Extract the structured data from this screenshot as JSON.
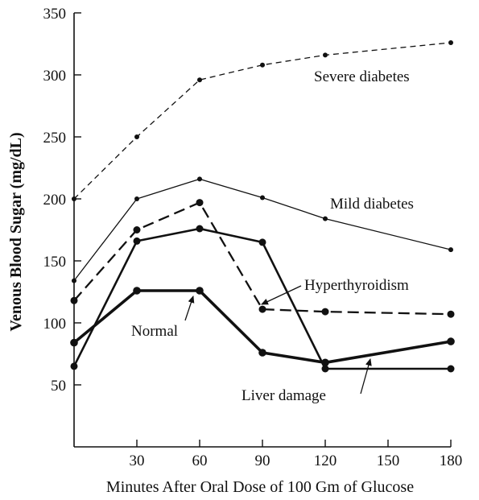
{
  "chart_data": {
    "type": "line",
    "xlabel": "Minutes After Oral Dose of 100 Gm of Glucose",
    "ylabel": "Venous Blood Sugar (mg/dL)",
    "xlim": [
      0,
      180
    ],
    "ylim": [
      0,
      350
    ],
    "x_ticks": [
      "30",
      "60",
      "90",
      "120",
      "150",
      "180"
    ],
    "y_ticks": [
      "50",
      "100",
      "150",
      "200",
      "250",
      "300",
      "350"
    ],
    "grid": false,
    "series": [
      {
        "name": "Severe diabetes",
        "x": [
          0,
          30,
          60,
          90,
          120,
          180
        ],
        "values": [
          200,
          250,
          296,
          308,
          316,
          326
        ],
        "line": "dashed-thin",
        "marker": "small"
      },
      {
        "name": "Mild diabetes",
        "x": [
          0,
          30,
          60,
          90,
          120,
          180
        ],
        "values": [
          134,
          200,
          216,
          201,
          184,
          159
        ],
        "line": "solid-thin",
        "marker": "small"
      },
      {
        "name": "Hyperthyroidism",
        "x": [
          0,
          30,
          60,
          90,
          120,
          180
        ],
        "values": [
          118,
          175,
          197,
          111,
          109,
          107
        ],
        "line": "dashed-thick",
        "marker": "large"
      },
      {
        "name": "Liver damage",
        "x": [
          0,
          30,
          60,
          90,
          120,
          180
        ],
        "values": [
          65,
          166,
          176,
          165,
          63,
          63
        ],
        "line": "solid-thick",
        "marker": "large"
      },
      {
        "name": "Normal",
        "x": [
          0,
          30,
          60,
          90,
          120,
          180
        ],
        "values": [
          84,
          126,
          126,
          76,
          68,
          85
        ],
        "line": "solid-thickest",
        "marker": "large"
      }
    ],
    "annotations": [
      "Severe diabetes",
      "Mild diabetes",
      "Hyperthyroidism",
      "Normal",
      "Liver damage"
    ]
  }
}
